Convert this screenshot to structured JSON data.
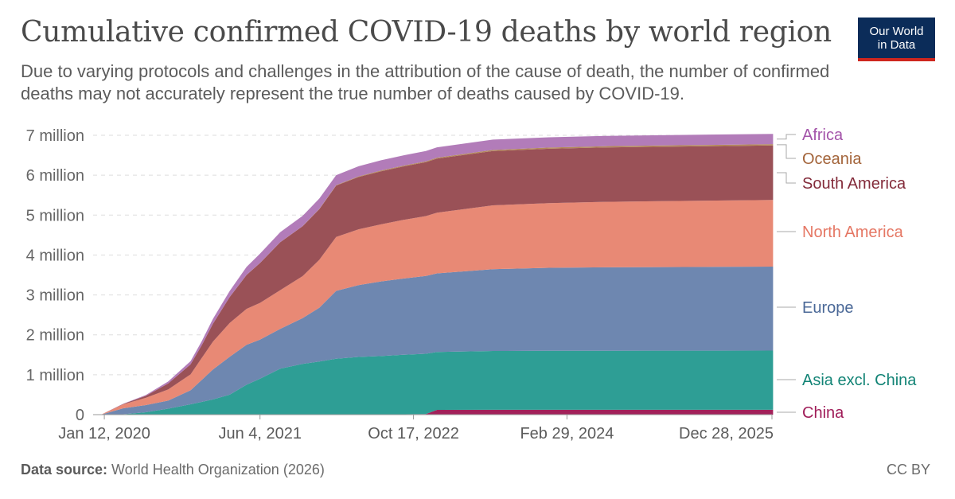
{
  "header": {
    "title": "Cumulative confirmed COVID-19 deaths by world region",
    "subtitle": "Due to varying protocols and challenges in the attribution of the cause of death, the number of confirmed deaths may not accurately represent the true number of deaths caused by COVID-19."
  },
  "logo": {
    "line1": "Our World",
    "line2": "in Data"
  },
  "footer": {
    "source_label": "Data source:",
    "source_text": " World Health Organization (2026)",
    "license": "CC BY"
  },
  "chart_data": {
    "type": "area",
    "stacked": true,
    "title": "Cumulative confirmed COVID-19 deaths by world region",
    "ylim": [
      0,
      7000000
    ],
    "y_ticks": [
      {
        "value": 0,
        "label": "0"
      },
      {
        "value": 1000000,
        "label": "1 million"
      },
      {
        "value": 2000000,
        "label": "2 million"
      },
      {
        "value": 3000000,
        "label": "3 million"
      },
      {
        "value": 4000000,
        "label": "4 million"
      },
      {
        "value": 5000000,
        "label": "5 million"
      },
      {
        "value": 6000000,
        "label": "6 million"
      },
      {
        "value": 7000000,
        "label": "7 million"
      }
    ],
    "x_ticks": [
      "Jan 12, 2020",
      "Jun 4, 2021",
      "Oct 17, 2022",
      "Feb 29, 2024",
      "Dec 28, 2025"
    ],
    "x_tick_years": [
      2020.03,
      2021.42,
      2022.79,
      2024.16,
      2025.99
    ],
    "x": [
      2020.0,
      2020.2,
      2020.4,
      2020.6,
      2020.8,
      2020.9,
      2021.0,
      2021.15,
      2021.3,
      2021.42,
      2021.6,
      2021.8,
      2021.95,
      2022.1,
      2022.3,
      2022.5,
      2022.7,
      2022.9,
      2023.0,
      2023.5,
      2024.0,
      2024.5,
      2025.0,
      2025.5,
      2026.0
    ],
    "series": [
      {
        "name": "China",
        "color": "#a2215a",
        "values": [
          0,
          0,
          0,
          0,
          0,
          0,
          0,
          0,
          0,
          0,
          0,
          0,
          0,
          1000,
          5000,
          8000,
          10000,
          15000,
          120000,
          121000,
          122000,
          122000,
          122000,
          122000,
          122000
        ]
      },
      {
        "name": "Asia excl. China",
        "color": "#2e9e95",
        "values": [
          0,
          10000,
          60000,
          150000,
          260000,
          320000,
          380000,
          500000,
          750000,
          900000,
          1150000,
          1270000,
          1330000,
          1400000,
          1440000,
          1460000,
          1490000,
          1510000,
          1450000,
          1475000,
          1478000,
          1480000,
          1481000,
          1482000,
          1483000
        ]
      },
      {
        "name": "Europe",
        "color": "#6e87b0",
        "values": [
          0,
          150000,
          180000,
          200000,
          350000,
          550000,
          750000,
          950000,
          1000000,
          980000,
          1000000,
          1150000,
          1350000,
          1700000,
          1800000,
          1870000,
          1910000,
          1950000,
          1970000,
          2050000,
          2080000,
          2090000,
          2095000,
          2100000,
          2105000
        ]
      },
      {
        "name": "North America",
        "color": "#e88975",
        "values": [
          0,
          100000,
          180000,
          280000,
          400000,
          550000,
          700000,
          850000,
          900000,
          920000,
          970000,
          1050000,
          1200000,
          1350000,
          1400000,
          1430000,
          1470000,
          1500000,
          1520000,
          1600000,
          1620000,
          1640000,
          1650000,
          1660000,
          1670000
        ]
      },
      {
        "name": "South America",
        "color": "#9a5157",
        "values": [
          0,
          10000,
          50000,
          150000,
          250000,
          320000,
          450000,
          650000,
          850000,
          1000000,
          1200000,
          1250000,
          1270000,
          1290000,
          1310000,
          1330000,
          1340000,
          1350000,
          1355000,
          1360000,
          1362000,
          1363000,
          1364000,
          1365000,
          1366000
        ]
      },
      {
        "name": "Oceania",
        "color": "#b48a59",
        "values": [
          0,
          0,
          0,
          0,
          0,
          1000,
          1000,
          1000,
          1500,
          2000,
          3000,
          4000,
          7000,
          10000,
          15000,
          18000,
          20000,
          23000,
          25000,
          28000,
          30000,
          31000,
          32000,
          32000,
          32000
        ]
      },
      {
        "name": "Africa",
        "color": "#b27cb9",
        "values": [
          0,
          5000,
          20000,
          50000,
          80000,
          100000,
          120000,
          150000,
          200000,
          230000,
          250000,
          255000,
          260000,
          250000,
          255000,
          257000,
          258000,
          258000,
          258000,
          258000,
          258000,
          258000,
          258000,
          258000,
          258000
        ]
      }
    ],
    "legend": [
      {
        "name": "Africa",
        "color": "#a353a9"
      },
      {
        "name": "Oceania",
        "color": "#a3643a"
      },
      {
        "name": "South America",
        "color": "#832b3a"
      },
      {
        "name": "North America",
        "color": "#e57764"
      },
      {
        "name": "Europe",
        "color": "#4a6897"
      },
      {
        "name": "Asia excl. China",
        "color": "#138476"
      },
      {
        "name": "China",
        "color": "#a01d59"
      }
    ]
  }
}
